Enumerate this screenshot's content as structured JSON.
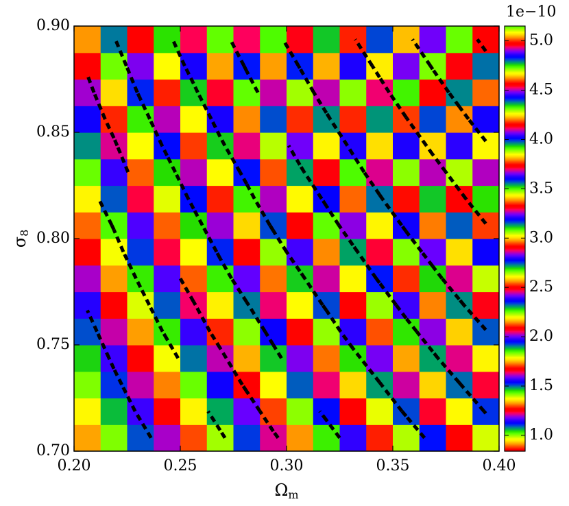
{
  "chart_data": {
    "type": "heatmap",
    "x": [
      0.20625,
      0.21875,
      0.23125,
      0.24375,
      0.25625,
      0.26875,
      0.28125,
      0.29375,
      0.30625,
      0.31875,
      0.33125,
      0.34375,
      0.35625,
      0.36875,
      0.38125,
      0.39375
    ],
    "y": [
      0.70625,
      0.71875,
      0.73125,
      0.74375,
      0.75625,
      0.76875,
      0.78125,
      0.79375,
      0.80625,
      0.81875,
      0.83125,
      0.84375,
      0.85625,
      0.86875,
      0.88125,
      0.89375
    ],
    "z": [
      [
        0.92,
        1.01,
        1.1,
        1.2,
        1.3,
        1.41,
        1.52,
        1.63,
        1.74,
        1.86,
        1.98,
        2.11,
        2.23,
        2.36,
        2.49,
        2.63
      ],
      [
        0.96,
        1.06,
        1.16,
        1.26,
        1.37,
        1.48,
        1.59,
        1.71,
        1.83,
        1.95,
        2.08,
        2.21,
        2.34,
        2.48,
        2.61,
        2.76
      ],
      [
        1.01,
        1.11,
        1.21,
        1.32,
        1.43,
        1.55,
        1.67,
        1.79,
        1.92,
        2.05,
        2.18,
        2.31,
        2.45,
        2.59,
        2.74,
        2.89
      ],
      [
        1.05,
        1.16,
        1.27,
        1.38,
        1.5,
        1.62,
        1.75,
        1.88,
        2.01,
        2.14,
        2.28,
        2.42,
        2.57,
        2.72,
        2.87,
        3.02
      ],
      [
        1.1,
        1.21,
        1.33,
        1.45,
        1.57,
        1.7,
        1.83,
        1.96,
        2.1,
        2.24,
        2.39,
        2.54,
        2.69,
        2.84,
        3.0,
        3.16
      ],
      [
        1.15,
        1.27,
        1.39,
        1.51,
        1.64,
        1.78,
        1.91,
        2.05,
        2.2,
        2.34,
        2.5,
        2.65,
        2.81,
        2.97,
        3.14,
        3.31
      ],
      [
        1.2,
        1.33,
        1.45,
        1.58,
        1.72,
        1.86,
        2.0,
        2.14,
        2.29,
        2.45,
        2.61,
        2.77,
        2.94,
        3.11,
        3.28,
        3.46
      ],
      [
        1.26,
        1.38,
        1.52,
        1.65,
        1.79,
        1.94,
        2.09,
        2.24,
        2.4,
        2.56,
        2.72,
        2.89,
        3.07,
        3.24,
        3.42,
        3.61
      ],
      [
        1.31,
        1.44,
        1.58,
        1.72,
        1.87,
        2.02,
        2.18,
        2.34,
        2.5,
        2.67,
        2.84,
        3.02,
        3.2,
        3.38,
        3.57,
        3.77
      ],
      [
        1.37,
        1.51,
        1.65,
        1.8,
        1.95,
        2.11,
        2.27,
        2.44,
        2.61,
        2.78,
        2.96,
        3.15,
        3.34,
        3.53,
        3.73,
        3.93
      ],
      [
        1.43,
        1.57,
        1.72,
        1.87,
        2.03,
        2.2,
        2.36,
        2.54,
        2.72,
        2.9,
        3.09,
        3.28,
        3.48,
        3.68,
        3.88,
        4.09
      ],
      [
        1.49,
        1.63,
        1.79,
        1.95,
        2.12,
        2.29,
        2.46,
        2.64,
        2.83,
        3.02,
        3.21,
        3.42,
        3.62,
        3.83,
        4.04,
        4.26
      ],
      [
        1.55,
        1.7,
        1.86,
        2.03,
        2.2,
        2.38,
        2.56,
        2.75,
        2.94,
        3.14,
        3.35,
        3.55,
        3.77,
        3.99,
        4.21,
        4.44
      ],
      [
        1.61,
        1.77,
        1.94,
        2.11,
        2.29,
        2.48,
        2.67,
        2.86,
        3.06,
        3.27,
        3.48,
        3.7,
        3.92,
        4.15,
        4.38,
        4.61
      ],
      [
        1.67,
        1.84,
        2.01,
        2.2,
        2.38,
        2.57,
        2.77,
        2.98,
        3.18,
        3.4,
        3.62,
        3.84,
        4.07,
        4.31,
        4.55,
        4.8
      ],
      [
        1.74,
        1.91,
        2.09,
        2.28,
        2.47,
        2.67,
        2.88,
        3.09,
        3.31,
        3.53,
        3.76,
        3.99,
        4.23,
        4.48,
        4.73,
        4.98
      ]
    ],
    "xlim": [
      0.2,
      0.4
    ],
    "ylim": [
      0.7,
      0.9
    ],
    "xticks": [
      {
        "value": 0.2,
        "label": "0.20"
      },
      {
        "value": 0.25,
        "label": "0.25"
      },
      {
        "value": 0.3,
        "label": "0.30"
      },
      {
        "value": 0.35,
        "label": "0.35"
      },
      {
        "value": 0.4,
        "label": "0.40"
      }
    ],
    "yticks": [
      {
        "value": 0.7,
        "label": "0.70"
      },
      {
        "value": 0.75,
        "label": "0.75"
      },
      {
        "value": 0.8,
        "label": "0.80"
      },
      {
        "value": 0.85,
        "label": "0.85"
      },
      {
        "value": 0.9,
        "label": "0.90"
      }
    ],
    "xlabel": {
      "symbol": "Ω",
      "subscript": "m"
    },
    "ylabel": {
      "symbol": "σ",
      "subscript": "8"
    },
    "colormap": "prism",
    "clim": [
      0.84,
      5.15
    ],
    "colorbar_ticks": [
      {
        "value": 1,
        "label": "1.0"
      },
      {
        "value": 1.5,
        "label": "1.5"
      },
      {
        "value": 2,
        "label": "2.0"
      },
      {
        "value": 2.5,
        "label": "2.5"
      },
      {
        "value": 3,
        "label": "3.0"
      },
      {
        "value": 3.5,
        "label": "3.5"
      },
      {
        "value": 4,
        "label": "4.0"
      },
      {
        "value": 4.5,
        "label": "4.5"
      },
      {
        "value": 5,
        "label": "5.0"
      }
    ],
    "colorbar_offset_label": "1e−10",
    "contour_levels": [
      1.14,
      1.43,
      1.65,
      1.92,
      2.32,
      2.75,
      3.17,
      3.78,
      4.29,
      4.9
    ],
    "contour_color": "#000000",
    "contour_style": "dashed"
  }
}
